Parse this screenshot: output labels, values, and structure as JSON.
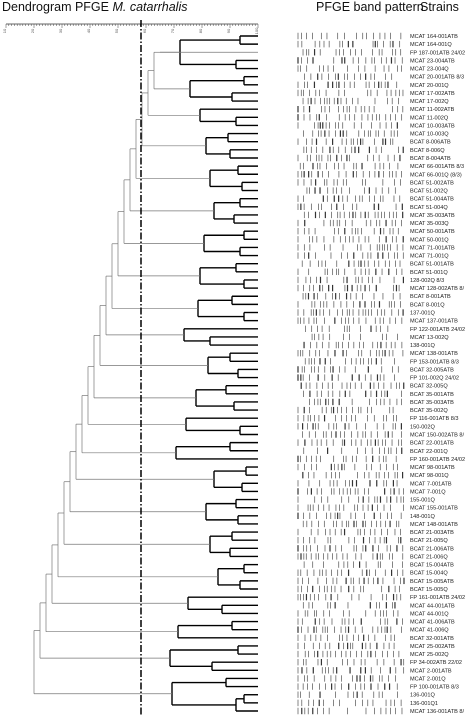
{
  "header": {
    "title_prefix": "Dendrogram PFGE ",
    "title_species": "M. catarrhalis",
    "band_heading": "PFGE band pattern",
    "strains_heading": "Strains"
  },
  "scale": {
    "ticks": [
      "10",
      "20",
      "30",
      "40",
      "50",
      "60",
      "70",
      "80",
      "90",
      "100"
    ]
  },
  "cutoff_line": {
    "style": "dash-dot",
    "color": "#000000"
  },
  "strains": [
    "MCAT 164-001ATB",
    "MCAT 164-001Q",
    "FP 187-001ATB 24/02",
    "MCAT 23-004ATB",
    "MCAT 23-004Q",
    "MCAT 20-001ATB 8/3",
    "MCAT 20-001Q",
    "MCAT 17-002ATB",
    "MCAT 17-002Q",
    "MCAT 11-002ATB",
    "MCAT 11-002Q",
    "MCAT 10-003ATB",
    "MCAT 10-003Q",
    "BCAT 8-006ATB",
    "BCAT 8-006Q",
    "BCAT 8-004ATB",
    "MCAT 66-001ATB 8/3",
    "MCAT 66-001Q (8/3)",
    "BCAT 51-002ATB",
    "BCAT 51-002Q",
    "BCAT 51-004ATB",
    "BCAT 51-004Q",
    "MCAT 35-003ATB",
    "MCAT 35-003Q",
    "MCAT 50-001ATB",
    "MCAT 50-001Q",
    "MCAT 71-001ATB",
    "MCAT 71-001Q",
    "BCAT 51-001ATB",
    "BCAT 51-001Q",
    "128-002Q 8/3",
    "MCAT 128-002ATB 8/",
    "BCAT 8-001ATB",
    "BCAT 8-001Q",
    "137-001Q",
    "MCAT 137-001ATB",
    "FP 122-001ATB 24/02",
    "MCAT 13-002Q",
    "138-001Q",
    "MCAT 138-001ATB",
    "FP 153-001ATB 8/3",
    "BCAT 32-005ATB",
    "FP 101-002Q 24/02",
    "BCAT 32-005Q",
    "BCAT 35-001ATB",
    "BCAT 35-003ATB",
    "BCAT 35-002Q",
    "FP 116-001ATB 8/3",
    "150-002Q",
    "MCAT 150-002ATB 8/",
    "BCAT 22-001ATB",
    "BCAT 22-001Q",
    "FP 160-001ATB 24/02",
    "MCAT 98-001ATB",
    "MCAT 98-001Q",
    "MCAT 7-001ATB",
    "MCAT 7-001Q",
    "155-001Q",
    "MCAT 155-001ATB",
    "148-001Q",
    "MCAT 148-001ATB",
    "BCAT 21-003ATB",
    "BCAT 21-005Q",
    "BCAT 21-006ATB",
    "BCAT 21-006Q",
    "BCAT 15-004ATB",
    "BCAT 15-004Q",
    "BCAT 15-005ATB",
    "BCAT 15-005Q",
    "FP 161-001ATB 24/02",
    "MCAT 44-001ATB",
    "MCAT 44-001Q",
    "MCAT 41-006ATB",
    "MCAT 41-006Q",
    "BCAT 32-001ATB",
    "MCAT 25-002ATB",
    "MCAT 25-002Q",
    "FP 34-002ATB 22/02",
    "MCAT 2-001ATB",
    "MCAT 2-001Q",
    "FP 100-001ATB 8/3",
    "136-001Q",
    "136-001Q1",
    "MCAT 136-001ATB 8/"
  ]
}
